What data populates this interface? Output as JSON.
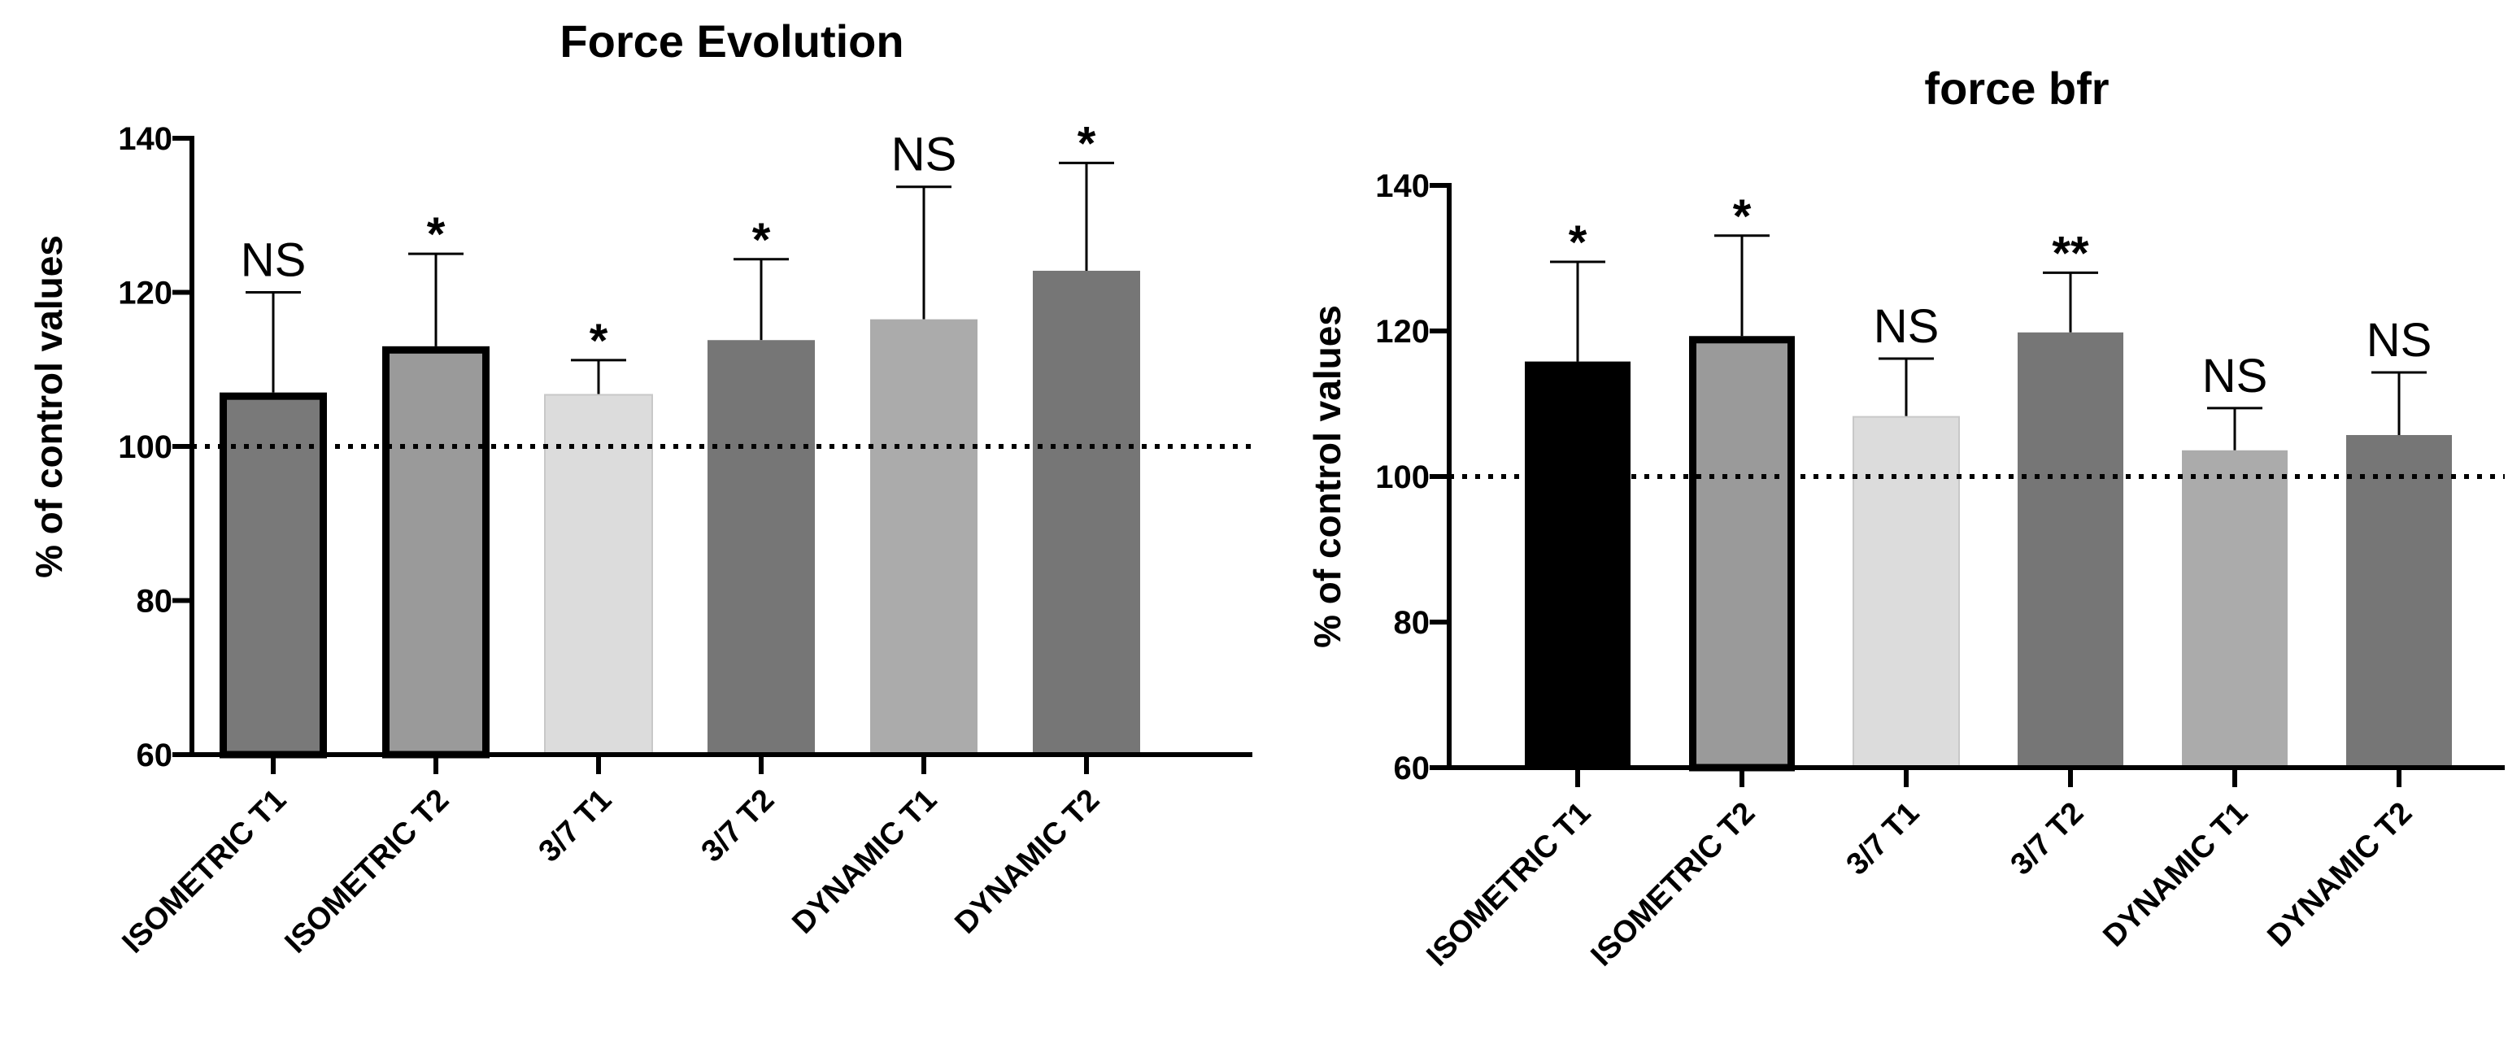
{
  "chart_data": [
    {
      "type": "bar",
      "title": "Force Evolution",
      "ylabel": "% of control values",
      "xlabel": "",
      "ylim": [
        60,
        140
      ],
      "yticks": [
        "60",
        "80",
        "100",
        "120",
        "140"
      ],
      "reference_line": 100,
      "categories": [
        "ISOMETRIC T1",
        "ISOMETRIC T2",
        "3/7 T1",
        "3/7 T2",
        "DYNAMIC T1",
        "DYNAMIC T2"
      ],
      "values": [
        107,
        113,
        106.7,
        113.8,
        116.5,
        122.8
      ],
      "errors": [
        13,
        12,
        4.5,
        10.5,
        17.2,
        14
      ],
      "annotations": [
        "NS",
        "*",
        "*",
        "*",
        "NS",
        "*"
      ],
      "colors": [
        "#797979",
        "#9a9a9a",
        "#dcdcdc",
        "#767676",
        "#ababab",
        "#767676"
      ],
      "outlined": [
        true,
        true,
        false,
        false,
        false,
        false
      ]
    },
    {
      "type": "bar",
      "title": "force bfr",
      "ylabel": "% of control values",
      "xlabel": "",
      "ylim": [
        60,
        140
      ],
      "yticks": [
        "60",
        "80",
        "100",
        "120",
        "140"
      ],
      "reference_line": 100,
      "categories": [
        "ISOMETRIC  T1",
        "ISOMETRIC T2",
        "3/7 T1",
        "3/7 T2",
        "DYNAMIC T1",
        "DYNAMIC T2"
      ],
      "values": [
        115.8,
        119.3,
        108.2,
        119.8,
        103.6,
        105.7
      ],
      "errors": [
        13.7,
        13.8,
        8,
        8.2,
        5.8,
        8.6
      ],
      "annotations": [
        "*",
        "*",
        "NS",
        "**",
        "NS",
        "NS"
      ],
      "colors": [
        "#000000",
        "#9a9a9a",
        "#dcdcdc",
        "#767676",
        "#ababab",
        "#767676"
      ],
      "outlined": [
        false,
        true,
        false,
        false,
        false,
        false
      ]
    }
  ]
}
